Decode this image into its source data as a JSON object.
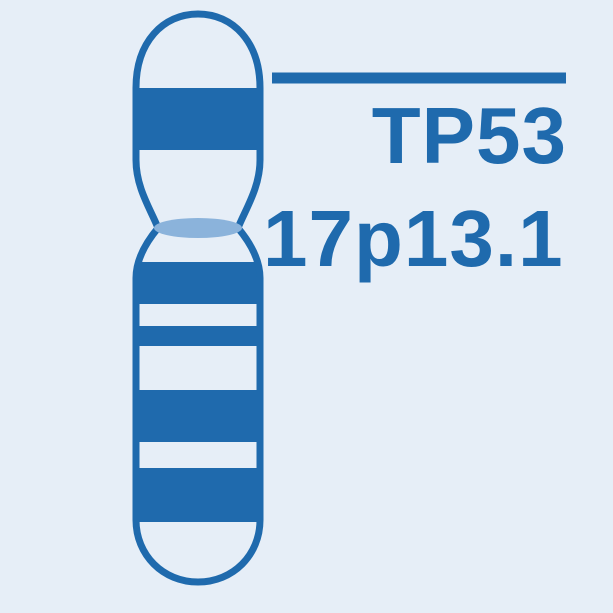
{
  "gene": {
    "symbol": "TP53",
    "locus": "17p13.1"
  },
  "colors": {
    "background": "#e6eef7",
    "primary": "#1f6aad",
    "centromere": "#8bb3db"
  }
}
